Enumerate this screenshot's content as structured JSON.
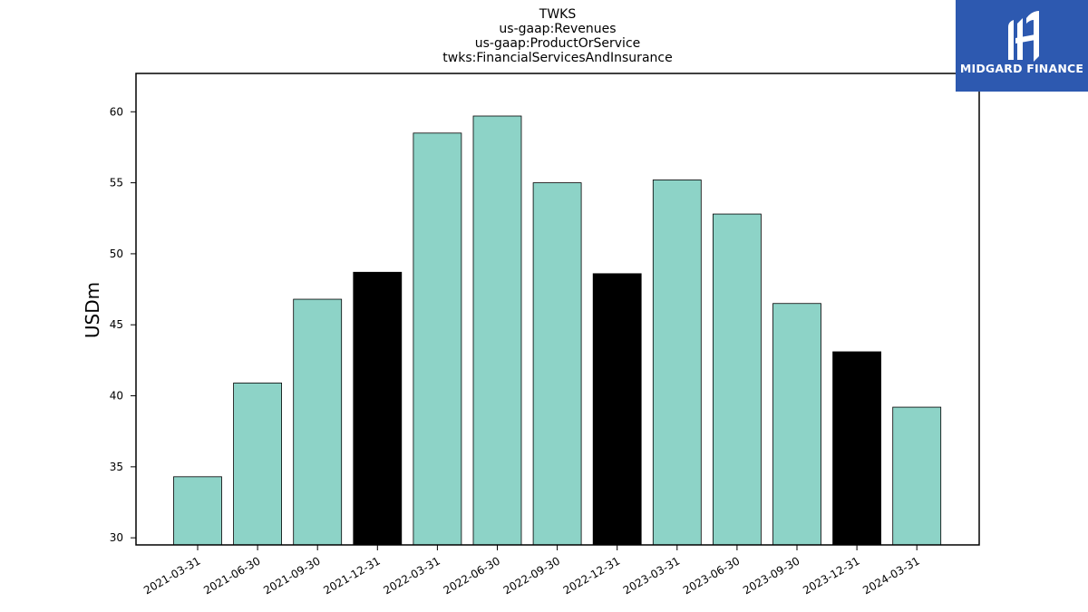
{
  "chart_data": {
    "type": "bar",
    "title_lines": [
      "TWKS",
      "us-gaap:Revenues",
      "us-gaap:ProductOrService",
      "twks:FinancialServicesAndInsurance"
    ],
    "ylabel": "USDm",
    "ylim": [
      29.5,
      62.7
    ],
    "yticks": [
      30,
      35,
      40,
      45,
      50,
      55,
      60
    ],
    "categories": [
      "2021-03-31",
      "2021-06-30",
      "2021-09-30",
      "2021-12-31",
      "2022-03-31",
      "2022-06-30",
      "2022-09-30",
      "2022-12-31",
      "2023-03-31",
      "2023-06-30",
      "2023-09-30",
      "2023-12-31",
      "2024-03-31"
    ],
    "values": [
      34.3,
      40.9,
      46.8,
      48.7,
      58.5,
      59.7,
      55.0,
      48.6,
      55.2,
      52.8,
      46.5,
      43.1,
      39.2
    ],
    "colors": [
      "#8dd3c7",
      "#8dd3c7",
      "#8dd3c7",
      "#000000",
      "#8dd3c7",
      "#8dd3c7",
      "#8dd3c7",
      "#000000",
      "#8dd3c7",
      "#8dd3c7",
      "#8dd3c7",
      "#000000",
      "#8dd3c7"
    ],
    "grid": false
  },
  "logo": {
    "text": "MIDGARD FINANCE",
    "icon": "midgard-logo-icon"
  }
}
